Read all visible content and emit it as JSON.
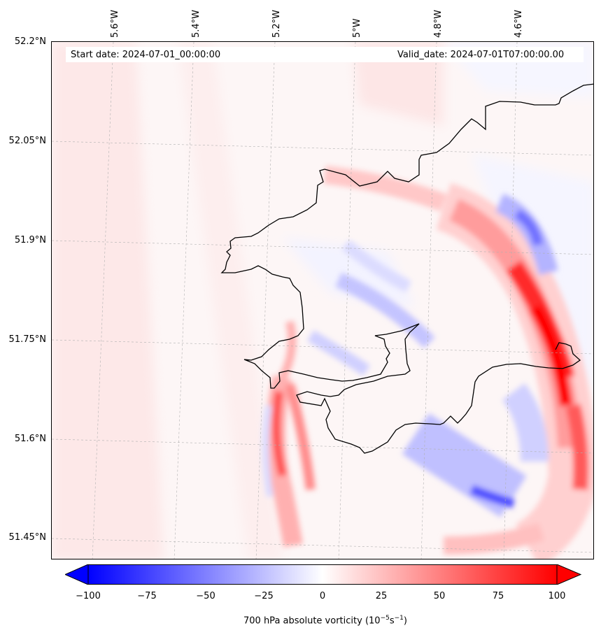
{
  "header": {
    "start_date": "Start date: 2024-07-01_00:00:00",
    "valid_date": "Valid_date: 2024-07-01T07:00:00.00"
  },
  "axes": {
    "lat_labels": [
      "52.2°N",
      "52.05°N",
      "51.9°N",
      "51.75°N",
      "51.6°N",
      "51.45°N"
    ],
    "lon_labels": [
      "5.6°W",
      "5.4°W",
      "5.2°W",
      "5°W",
      "4.8°W",
      "4.6°W"
    ]
  },
  "colorbar": {
    "ticks": [
      "−100",
      "−75",
      "−50",
      "−25",
      "0",
      "25",
      "50",
      "75",
      "100"
    ],
    "label_prefix": "700 hPa absolute vorticity (10",
    "label_exp1": "−5",
    "label_mid": "s",
    "label_exp2": "−1",
    "label_suffix": ")",
    "min_color": "#0000ff",
    "mid_color": "#ffffff",
    "max_color": "#ff0000"
  }
}
